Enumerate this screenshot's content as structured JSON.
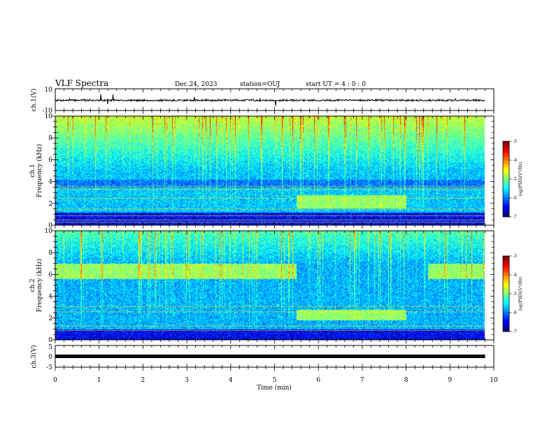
{
  "header": {
    "title": "VLF Spectra",
    "date": "Dec.24, 2023",
    "station": "station=OUJ",
    "start_ut": "start  UT =  4 : 0  : 0"
  },
  "chart_data": [
    {
      "type": "line",
      "name": "ch1-waveform",
      "ylabel": "ch.1(V)",
      "ylim": [
        -10,
        10
      ],
      "yticks": [
        "10",
        "-10"
      ],
      "x": [
        0,
        1,
        2,
        3,
        4,
        5,
        6,
        7,
        8,
        9,
        9.8
      ],
      "y": [
        -0.6,
        -0.5,
        -0.7,
        -0.6,
        -0.5,
        -0.6,
        -0.6,
        -0.5,
        -0.6,
        -0.6,
        -0.5
      ],
      "xlim": [
        0,
        10
      ]
    },
    {
      "type": "heatmap",
      "name": "ch1-spectrogram",
      "ylabel": "ch.1\nFrequency (kHz)",
      "ylabel_line1": "ch.1",
      "ylabel_line2": "Frequency (kHz)",
      "ylim": [
        0,
        10
      ],
      "yticks": [
        "0",
        "2",
        "4",
        "6",
        "8",
        "10"
      ],
      "xlim": [
        0,
        10
      ],
      "data_extent_min": 9.8,
      "colorbar": {
        "ticks": [
          "-3",
          "-4",
          "-5",
          "-6",
          "-7"
        ],
        "label": "log(PSD)(V²/Hz)",
        "range": [
          -7,
          -3
        ]
      }
    },
    {
      "type": "heatmap",
      "name": "ch2-spectrogram",
      "ylabel": "ch.2\nFrequency (kHz)",
      "ylabel_line1": "ch.2",
      "ylabel_line2": "Frequency (kHz)",
      "ylim": [
        0,
        10
      ],
      "yticks": [
        "0",
        "2",
        "4",
        "6",
        "8",
        "10"
      ],
      "xlim": [
        0,
        10
      ],
      "data_extent_min": 9.8,
      "colorbar": {
        "ticks": [
          "-3",
          "-4",
          "-5",
          "-6",
          "-7"
        ],
        "label": "log(PSD)(V²/Hz)",
        "range": [
          -7,
          -3
        ]
      }
    },
    {
      "type": "line",
      "name": "ch3-waveform",
      "ylabel": "ch.3(V)",
      "ylim": [
        -5,
        5
      ],
      "yticks": [
        "5",
        "0",
        "-5"
      ],
      "x": [
        0,
        9.8
      ],
      "y": [
        0,
        0
      ],
      "xlim": [
        0,
        10
      ],
      "xlabel": "Time (min)",
      "xticks": [
        "0",
        "1",
        "2",
        "3",
        "4",
        "5",
        "6",
        "7",
        "8",
        "9",
        "10"
      ]
    }
  ]
}
